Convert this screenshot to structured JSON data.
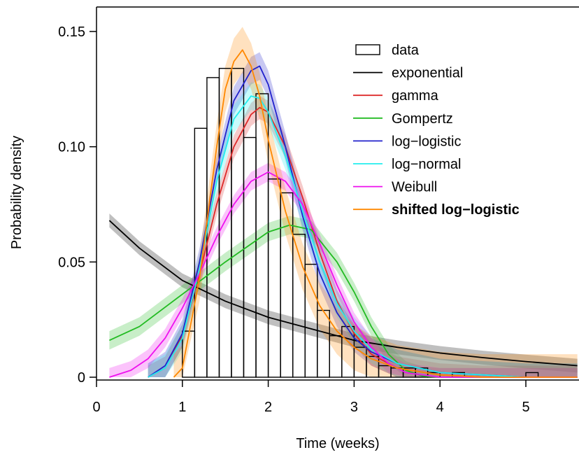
{
  "chart_data": {
    "type": "bar",
    "xlabel": "Time (weeks)",
    "ylabel": "Probability density",
    "xlim": [
      0,
      5.6
    ],
    "ylim": [
      0,
      0.16
    ],
    "x_ticks": [
      "0",
      "1",
      "2",
      "3",
      "4",
      "5"
    ],
    "x_tick_values": [
      0,
      1,
      2,
      3,
      4,
      5
    ],
    "y_ticks": [
      "0",
      "0.05",
      "0.10",
      "0.15"
    ],
    "y_tick_values": [
      0,
      0.05,
      0.1,
      0.15
    ],
    "grid": false,
    "legend_placement": "top-right",
    "histogram": {
      "name": "data",
      "bin_width": 0.143,
      "bins": [
        {
          "start": 0.857,
          "value": 0.0
        },
        {
          "start": 1.0,
          "value": 0.02
        },
        {
          "start": 1.143,
          "value": 0.108
        },
        {
          "start": 1.286,
          "value": 0.13
        },
        {
          "start": 1.429,
          "value": 0.134
        },
        {
          "start": 1.571,
          "value": 0.134
        },
        {
          "start": 1.714,
          "value": 0.104
        },
        {
          "start": 1.857,
          "value": 0.123
        },
        {
          "start": 2.0,
          "value": 0.086
        },
        {
          "start": 2.143,
          "value": 0.08
        },
        {
          "start": 2.286,
          "value": 0.062
        },
        {
          "start": 2.429,
          "value": 0.049
        },
        {
          "start": 2.571,
          "value": 0.029
        },
        {
          "start": 2.714,
          "value": 0.018
        },
        {
          "start": 2.857,
          "value": 0.022
        },
        {
          "start": 3.0,
          "value": 0.013
        },
        {
          "start": 3.143,
          "value": 0.009
        },
        {
          "start": 3.286,
          "value": 0.005
        },
        {
          "start": 3.429,
          "value": 0.004
        },
        {
          "start": 3.571,
          "value": 0.004
        },
        {
          "start": 3.714,
          "value": 0.004
        },
        {
          "start": 3.857,
          "value": 0.002
        },
        {
          "start": 4.0,
          "value": 0.0
        },
        {
          "start": 4.143,
          "value": 0.002
        },
        {
          "start": 4.286,
          "value": 0.0
        },
        {
          "start": 4.429,
          "value": 0.0
        },
        {
          "start": 4.571,
          "value": 0.0
        },
        {
          "start": 4.714,
          "value": 0.0
        },
        {
          "start": 4.857,
          "value": 0.0
        },
        {
          "start": 5.0,
          "value": 0.002
        }
      ]
    },
    "series": [
      {
        "name": "exponential",
        "color": "#000000",
        "band": 0.003,
        "x": [
          0.15,
          0.5,
          1.0,
          1.5,
          2.0,
          2.5,
          3.0,
          3.5,
          4.0,
          4.5,
          5.0,
          5.6
        ],
        "y": [
          0.068,
          0.056,
          0.042,
          0.033,
          0.026,
          0.021,
          0.016,
          0.013,
          0.0105,
          0.0085,
          0.0068,
          0.005
        ]
      },
      {
        "name": "gamma",
        "color": "#dd2a2a",
        "band": 0.005,
        "x": [
          0.6,
          0.8,
          1.0,
          1.2,
          1.4,
          1.6,
          1.8,
          1.9,
          2.0,
          2.2,
          2.4,
          2.6,
          2.8,
          3.0,
          3.2,
          3.5,
          4.0,
          4.5,
          5.0,
          5.6
        ],
        "y": [
          0.0,
          0.004,
          0.018,
          0.045,
          0.075,
          0.1,
          0.114,
          0.117,
          0.115,
          0.1,
          0.078,
          0.054,
          0.033,
          0.019,
          0.01,
          0.004,
          0.001,
          0.0,
          0.0,
          0.0
        ]
      },
      {
        "name": "Gompertz",
        "color": "#22bb22",
        "band": 0.004,
        "x": [
          0.15,
          0.5,
          1.0,
          1.5,
          2.0,
          2.25,
          2.5,
          2.8,
          3.0,
          3.2,
          3.4,
          3.6,
          3.8,
          4.0,
          4.5,
          5.0,
          5.6
        ],
        "y": [
          0.016,
          0.022,
          0.036,
          0.05,
          0.063,
          0.066,
          0.064,
          0.05,
          0.037,
          0.022,
          0.01,
          0.003,
          0.0005,
          0.0,
          0.0,
          0.0,
          0.0
        ]
      },
      {
        "name": "log-logistic",
        "color": "#2222cc",
        "band": 0.006,
        "x": [
          0.6,
          0.8,
          1.0,
          1.2,
          1.4,
          1.6,
          1.8,
          1.9,
          2.0,
          2.2,
          2.4,
          2.6,
          2.8,
          3.0,
          3.2,
          3.5,
          4.0,
          4.5,
          5.0,
          5.6
        ],
        "y": [
          0.0,
          0.005,
          0.019,
          0.05,
          0.09,
          0.12,
          0.133,
          0.135,
          0.127,
          0.1,
          0.07,
          0.045,
          0.028,
          0.017,
          0.011,
          0.006,
          0.002,
          0.001,
          0.0,
          0.0
        ]
      },
      {
        "name": "log-normal",
        "color": "#22eeee",
        "band": 0.006,
        "x": [
          0.6,
          0.8,
          1.0,
          1.2,
          1.4,
          1.6,
          1.8,
          1.9,
          2.0,
          2.2,
          2.4,
          2.6,
          2.8,
          3.0,
          3.2,
          3.5,
          4.0,
          4.5,
          5.0,
          5.6
        ],
        "y": [
          0.0,
          0.004,
          0.017,
          0.047,
          0.085,
          0.112,
          0.122,
          0.121,
          0.115,
          0.096,
          0.072,
          0.05,
          0.032,
          0.02,
          0.012,
          0.006,
          0.002,
          0.001,
          0.0,
          0.0
        ]
      },
      {
        "name": "Weibull",
        "color": "#ee11ee",
        "band": 0.004,
        "x": [
          0.15,
          0.4,
          0.6,
          0.8,
          1.0,
          1.2,
          1.4,
          1.6,
          1.8,
          2.0,
          2.2,
          2.4,
          2.6,
          2.8,
          3.0,
          3.2,
          3.4,
          3.6,
          3.8,
          4.0,
          4.5,
          5.0,
          5.6
        ],
        "y": [
          0.0,
          0.003,
          0.008,
          0.017,
          0.03,
          0.045,
          0.061,
          0.075,
          0.085,
          0.089,
          0.085,
          0.075,
          0.058,
          0.04,
          0.024,
          0.013,
          0.006,
          0.002,
          0.001,
          0.0,
          0.0,
          0.0,
          0.0
        ]
      },
      {
        "name": "shifted log-logistic",
        "color": "#ff8800",
        "bold": true,
        "band": 0.01,
        "x": [
          0.9,
          1.0,
          1.2,
          1.4,
          1.5,
          1.6,
          1.7,
          1.8,
          1.9,
          2.0,
          2.2,
          2.4,
          2.6,
          2.8,
          3.0,
          3.2,
          3.5,
          4.0,
          4.5,
          5.0,
          5.6
        ],
        "y": [
          0.0,
          0.004,
          0.043,
          0.1,
          0.125,
          0.137,
          0.142,
          0.135,
          0.122,
          0.103,
          0.072,
          0.048,
          0.031,
          0.02,
          0.013,
          0.008,
          0.004,
          0.001,
          0.0,
          0.0,
          0.0
        ]
      }
    ],
    "legend": [
      {
        "label": "data",
        "kind": "box",
        "color": "#000000"
      },
      {
        "label": "exponential",
        "kind": "line",
        "color": "#000000"
      },
      {
        "label": "gamma",
        "kind": "line",
        "color": "#dd2a2a"
      },
      {
        "label": "Gompertz",
        "kind": "line",
        "color": "#22bb22"
      },
      {
        "label": "log−logistic",
        "kind": "line",
        "color": "#2222cc"
      },
      {
        "label": "log−normal",
        "kind": "line",
        "color": "#22eeee"
      },
      {
        "label": "Weibull",
        "kind": "line",
        "color": "#ee11ee"
      },
      {
        "label": "shifted log−logistic",
        "kind": "line",
        "color": "#ff8800",
        "bold": true
      }
    ]
  }
}
